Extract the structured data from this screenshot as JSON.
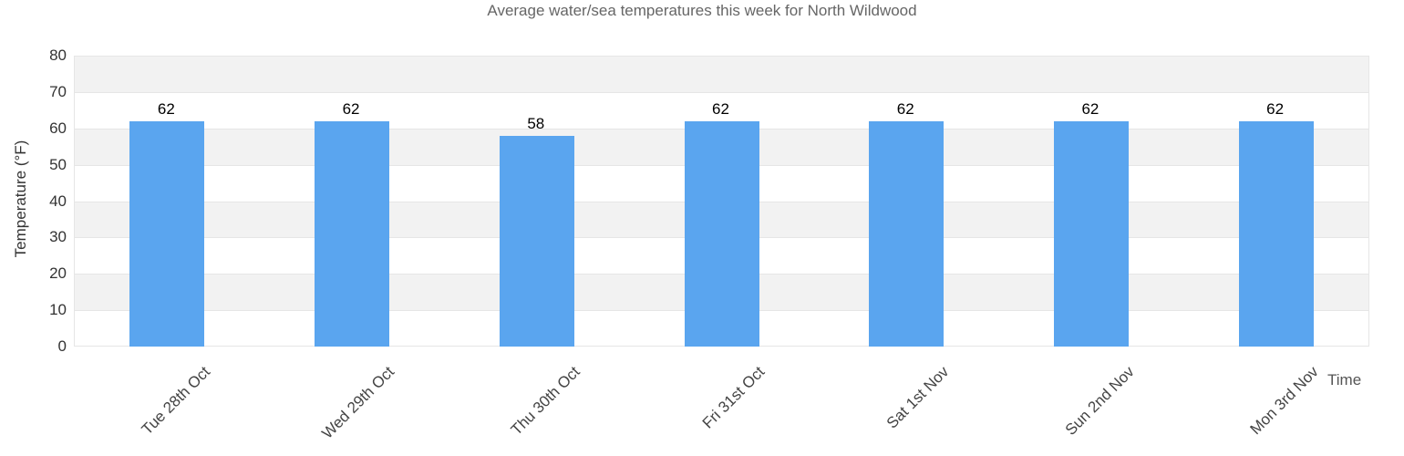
{
  "header": {
    "title": "Average water/sea temperatures this week for North Wildwood"
  },
  "colors": {
    "bar": "#5aa5ef",
    "band": "#f2f2f2",
    "grid": "#e6e6e6",
    "title_text": "#666666",
    "axis_text": "#444444",
    "value_text": "#000000"
  },
  "chart_data": {
    "type": "bar",
    "title": "Average water/sea temperatures this week for North Wildwood",
    "categories": [
      "Tue 28th Oct",
      "Wed 29th Oct",
      "Thu 30th Oct",
      "Fri 31st Oct",
      "Sat 1st Nov",
      "Sun 2nd Nov",
      "Mon 3rd Nov"
    ],
    "values": [
      62,
      62,
      58,
      62,
      62,
      62,
      62
    ],
    "xlabel": "Time",
    "ylabel": "Temperature (°F)",
    "ylim": [
      0,
      80
    ],
    "ytick_step": 10,
    "yticks": [
      0,
      10,
      20,
      30,
      40,
      50,
      60,
      70,
      80
    ],
    "grid": "horizontal-alternating-bands",
    "legend": "none",
    "value_labels": true
  }
}
